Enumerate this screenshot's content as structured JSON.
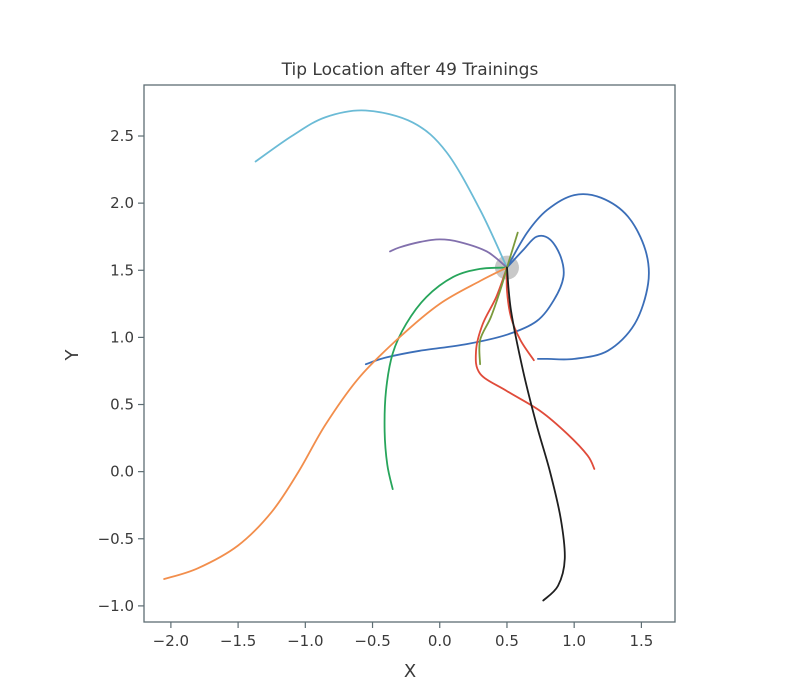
{
  "chart_data": {
    "type": "line",
    "title": "Tip Location after 49 Trainings",
    "xlabel": "X",
    "ylabel": "Y",
    "xlim": [
      -2.2,
      1.75
    ],
    "ylim": [
      -1.12,
      2.88
    ],
    "xticks": [
      -2.0,
      -1.5,
      -1.0,
      -0.5,
      0.0,
      0.5,
      1.0,
      1.5
    ],
    "yticks": [
      -1.0,
      -0.5,
      0.0,
      0.5,
      1.0,
      1.5,
      2.0,
      2.5
    ],
    "xtick_labels": [
      "−2.0",
      "−1.5",
      "−1.0",
      "−0.5",
      "0.0",
      "0.5",
      "1.0",
      "1.5"
    ],
    "ytick_labels": [
      "−1.0",
      "−0.5",
      "0.0",
      "0.5",
      "1.0",
      "1.5",
      "2.0",
      "2.5"
    ],
    "grid": false,
    "origin_marker": {
      "x": 0.5,
      "y": 1.52,
      "color": "#c8c8c8"
    },
    "series": [
      {
        "color": "#6bbbd6",
        "points": [
          [
            0.5,
            1.52
          ],
          [
            0.3,
            1.95
          ],
          [
            0.05,
            2.38
          ],
          [
            -0.2,
            2.6
          ],
          [
            -0.55,
            2.69
          ],
          [
            -0.85,
            2.64
          ],
          [
            -1.1,
            2.5
          ],
          [
            -1.37,
            2.31
          ]
        ]
      },
      {
        "color": "#3b6eb8",
        "points": [
          [
            0.5,
            1.52
          ],
          [
            0.62,
            1.65
          ],
          [
            0.72,
            1.75
          ],
          [
            0.82,
            1.73
          ],
          [
            0.9,
            1.6
          ],
          [
            0.92,
            1.45
          ],
          [
            0.85,
            1.28
          ],
          [
            0.72,
            1.12
          ],
          [
            0.5,
            1.02
          ],
          [
            0.2,
            0.95
          ],
          [
            -0.15,
            0.9
          ],
          [
            -0.4,
            0.85
          ],
          [
            -0.55,
            0.8
          ]
        ]
      },
      {
        "color": "#3b6eb8",
        "points": [
          [
            0.5,
            1.52
          ],
          [
            0.65,
            1.78
          ],
          [
            0.8,
            1.95
          ],
          [
            1.0,
            2.06
          ],
          [
            1.2,
            2.04
          ],
          [
            1.4,
            1.9
          ],
          [
            1.53,
            1.65
          ],
          [
            1.55,
            1.4
          ],
          [
            1.45,
            1.1
          ],
          [
            1.25,
            0.9
          ],
          [
            1.0,
            0.84
          ],
          [
            0.8,
            0.84
          ],
          [
            0.73,
            0.84
          ]
        ]
      },
      {
        "color": "#8270ad",
        "points": [
          [
            0.5,
            1.52
          ],
          [
            0.35,
            1.64
          ],
          [
            0.15,
            1.71
          ],
          [
            0.0,
            1.73
          ],
          [
            -0.15,
            1.71
          ],
          [
            -0.3,
            1.67
          ],
          [
            -0.37,
            1.64
          ]
        ]
      },
      {
        "color": "#27a55b",
        "points": [
          [
            0.5,
            1.52
          ],
          [
            0.3,
            1.51
          ],
          [
            0.1,
            1.45
          ],
          [
            -0.1,
            1.3
          ],
          [
            -0.25,
            1.1
          ],
          [
            -0.35,
            0.88
          ],
          [
            -0.4,
            0.6
          ],
          [
            -0.41,
            0.3
          ],
          [
            -0.39,
            0.05
          ],
          [
            -0.35,
            -0.13
          ]
        ]
      },
      {
        "color": "#f28e4c",
        "points": [
          [
            0.5,
            1.52
          ],
          [
            0.3,
            1.42
          ],
          [
            0.0,
            1.25
          ],
          [
            -0.3,
            1.0
          ],
          [
            -0.6,
            0.7
          ],
          [
            -0.85,
            0.35
          ],
          [
            -1.05,
            0.0
          ],
          [
            -1.25,
            -0.3
          ],
          [
            -1.5,
            -0.55
          ],
          [
            -1.8,
            -0.72
          ],
          [
            -2.05,
            -0.8
          ]
        ]
      },
      {
        "color": "#e04b3a",
        "points": [
          [
            0.5,
            1.52
          ],
          [
            0.42,
            1.3
          ],
          [
            0.32,
            1.1
          ],
          [
            0.27,
            0.9
          ],
          [
            0.3,
            0.73
          ],
          [
            0.5,
            0.6
          ],
          [
            0.75,
            0.45
          ],
          [
            0.95,
            0.28
          ],
          [
            1.1,
            0.12
          ],
          [
            1.15,
            0.02
          ]
        ]
      },
      {
        "color": "#e04b3a",
        "points": [
          [
            0.5,
            1.52
          ],
          [
            0.5,
            1.35
          ],
          [
            0.53,
            1.15
          ],
          [
            0.6,
            0.98
          ],
          [
            0.7,
            0.83
          ]
        ]
      },
      {
        "color": "#7a9a3c",
        "points": [
          [
            0.5,
            1.52
          ],
          [
            0.45,
            1.35
          ],
          [
            0.38,
            1.15
          ],
          [
            0.3,
            0.98
          ],
          [
            0.3,
            0.8
          ]
        ]
      },
      {
        "color": "#7a9a3c",
        "points": [
          [
            0.5,
            1.52
          ],
          [
            0.54,
            1.65
          ],
          [
            0.58,
            1.78
          ]
        ]
      },
      {
        "color": "#1f1f1f",
        "points": [
          [
            0.5,
            1.52
          ],
          [
            0.53,
            1.2
          ],
          [
            0.62,
            0.75
          ],
          [
            0.72,
            0.35
          ],
          [
            0.82,
            0.0
          ],
          [
            0.9,
            -0.35
          ],
          [
            0.93,
            -0.65
          ],
          [
            0.88,
            -0.85
          ],
          [
            0.77,
            -0.96
          ]
        ]
      }
    ]
  }
}
